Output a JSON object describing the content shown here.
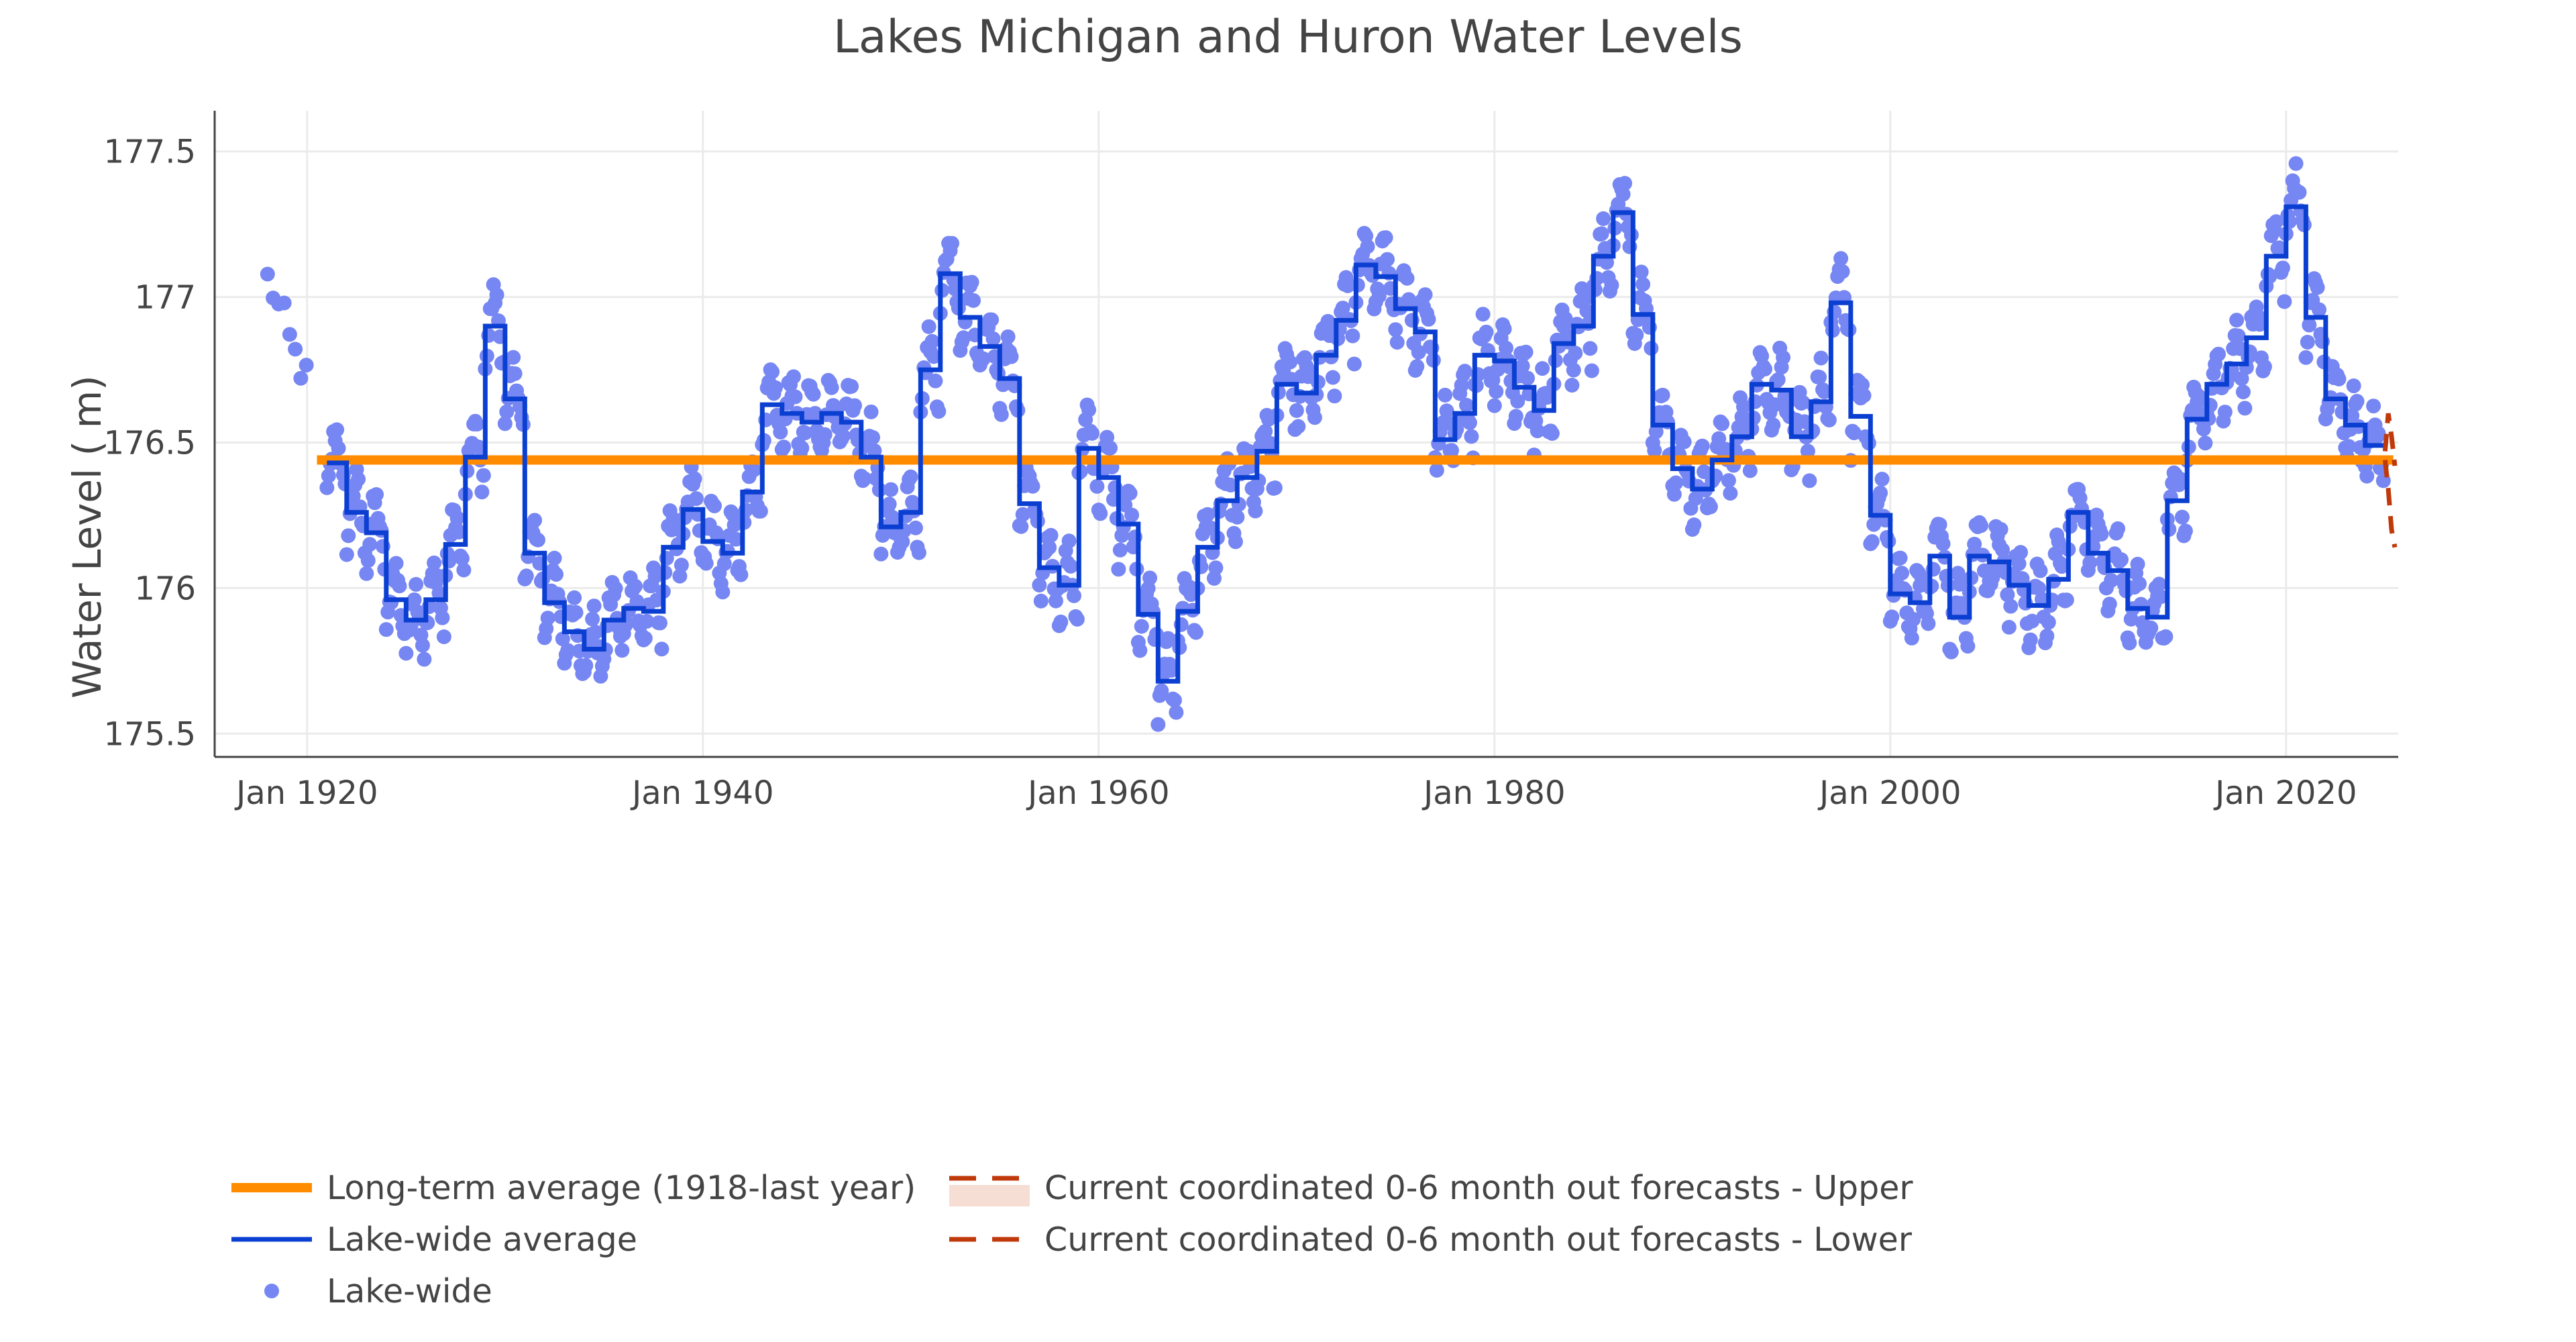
{
  "colors": {
    "average": "#FF8C00",
    "lakewide_avg": "#0B3FD1",
    "lakewide": "#7686F2",
    "forecast": "#C0390B",
    "forecast_band": "#F6DED5",
    "grid": "#EBEBEB",
    "axis": "#444444"
  },
  "chart_data": {
    "type": "line",
    "title": "Lakes Michigan and Huron Water Levels",
    "ylabel": "Water Level ( m)",
    "xlabel": "",
    "xlim": [
      "1915-05-01",
      "2025-09-01"
    ],
    "ylim": [
      175.42,
      177.64
    ],
    "grid": true,
    "legend_position": "bottom-left",
    "x_ticks": [
      {
        "date": "1920-01-01",
        "label": "Jan 1920"
      },
      {
        "date": "1940-01-01",
        "label": "Jan 1940"
      },
      {
        "date": "1960-01-01",
        "label": "Jan 1960"
      },
      {
        "date": "1980-01-01",
        "label": "Jan 1980"
      },
      {
        "date": "2000-01-01",
        "label": "Jan 2000"
      },
      {
        "date": "2020-01-01",
        "label": "Jan 2020"
      }
    ],
    "y_ticks": [
      {
        "value": 175.5,
        "label": "175.5"
      },
      {
        "value": 176,
        "label": "176"
      },
      {
        "value": 176.5,
        "label": "176.5"
      },
      {
        "value": 177,
        "label": "177"
      },
      {
        "value": 177.5,
        "label": "177.5"
      }
    ],
    "series": [
      {
        "name": "Long-term average (1918-last year)",
        "type": "line",
        "color": "#FF8C00",
        "x": [
          "1920-07-01",
          "2025-06-01"
        ],
        "y": [
          176.44,
          176.44
        ]
      },
      {
        "name": "Lake-wide average",
        "type": "step",
        "color": "#0B3FD1",
        "years": [
          1921,
          1922,
          1923,
          1924,
          1925,
          1926,
          1927,
          1928,
          1929,
          1930,
          1931,
          1932,
          1933,
          1934,
          1935,
          1936,
          1937,
          1938,
          1939,
          1940,
          1941,
          1942,
          1943,
          1944,
          1945,
          1946,
          1947,
          1948,
          1949,
          1950,
          1951,
          1952,
          1953,
          1954,
          1955,
          1956,
          1957,
          1958,
          1959,
          1960,
          1961,
          1962,
          1963,
          1964,
          1965,
          1966,
          1967,
          1968,
          1969,
          1970,
          1971,
          1972,
          1973,
          1974,
          1975,
          1976,
          1977,
          1978,
          1979,
          1980,
          1981,
          1982,
          1983,
          1984,
          1985,
          1986,
          1987,
          1988,
          1989,
          1990,
          1991,
          1992,
          1993,
          1994,
          1995,
          1996,
          1997,
          1998,
          1999,
          2000,
          2001,
          2002,
          2003,
          2004,
          2005,
          2006,
          2007,
          2008,
          2009,
          2010,
          2011,
          2012,
          2013,
          2014,
          2015,
          2016,
          2017,
          2018,
          2019,
          2020,
          2021,
          2022,
          2023,
          2024
        ],
        "values": [
          176.43,
          176.26,
          176.19,
          175.96,
          175.89,
          175.96,
          176.15,
          176.45,
          176.9,
          176.65,
          176.12,
          175.95,
          175.85,
          175.79,
          175.89,
          175.93,
          175.92,
          176.14,
          176.27,
          176.16,
          176.12,
          176.33,
          176.63,
          176.6,
          176.57,
          176.6,
          176.57,
          176.45,
          176.21,
          176.26,
          176.75,
          177.08,
          176.93,
          176.83,
          176.72,
          176.29,
          176.07,
          176.01,
          176.48,
          176.38,
          176.22,
          175.91,
          175.68,
          175.92,
          176.14,
          176.3,
          176.38,
          176.47,
          176.7,
          176.67,
          176.8,
          176.92,
          177.11,
          177.07,
          176.96,
          176.88,
          176.51,
          176.6,
          176.8,
          176.78,
          176.69,
          176.61,
          176.84,
          176.9,
          177.14,
          177.29,
          176.94,
          176.56,
          176.41,
          176.34,
          176.44,
          176.52,
          176.7,
          176.68,
          176.52,
          176.64,
          176.98,
          176.59,
          176.25,
          175.98,
          175.95,
          176.11,
          175.9,
          176.11,
          176.09,
          176.01,
          175.94,
          176.03,
          176.26,
          176.12,
          176.06,
          175.93,
          175.9,
          176.3,
          176.58,
          176.7,
          176.77,
          176.86,
          177.14,
          177.31,
          176.93,
          176.65,
          176.56,
          176.49
        ]
      },
      {
        "name": "Lake-wide",
        "type": "scatter",
        "color": "#7686F2",
        "note_monthly_scatter_around_average": true
      },
      {
        "name": "Current coordinated 0-6 month out forecasts - Upper",
        "type": "line",
        "color": "#C0390B",
        "dash": true,
        "x": [
          "2025-01-01",
          "2025-03-01",
          "2025-05-01",
          "2025-07-01"
        ],
        "y": [
          176.47,
          176.6,
          176.52,
          176.42
        ]
      },
      {
        "name": "Current coordinated 0-6 month out forecasts - Lower",
        "type": "line",
        "color": "#C0390B",
        "dash": true,
        "x": [
          "2025-01-01",
          "2025-03-01",
          "2025-05-01",
          "2025-07-01"
        ],
        "y": [
          176.44,
          176.34,
          176.2,
          176.14
        ]
      }
    ],
    "legend": [
      {
        "label": "Long-term average (1918-last year)",
        "kind": "line",
        "color": "#FF8C00"
      },
      {
        "label": "Lake-wide average",
        "kind": "line",
        "color": "#0B3FD1"
      },
      {
        "label": "Lake-wide",
        "kind": "marker",
        "color": "#7686F2"
      },
      {
        "label": "Current coordinated 0-6 month out forecasts - Upper",
        "kind": "band",
        "color": "#C0390B"
      },
      {
        "label": "Current coordinated 0-6 month out forecasts - Lower",
        "kind": "dash",
        "color": "#C0390B"
      }
    ]
  }
}
